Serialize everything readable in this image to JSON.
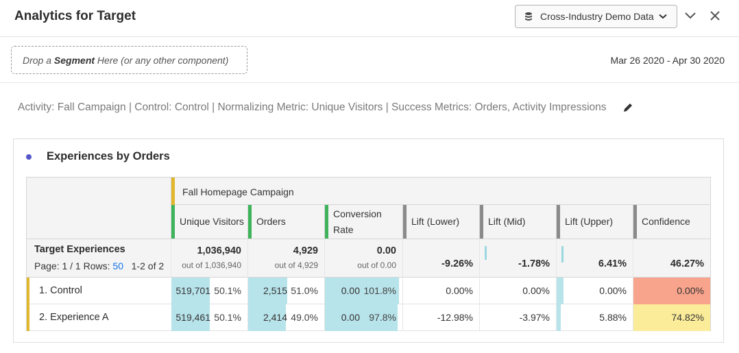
{
  "header": {
    "title": "Analytics for Target",
    "report_suite": "Cross-Industry Demo Data"
  },
  "segment_bar": {
    "drop_prefix": "Drop a ",
    "drop_bold": "Segment",
    "drop_suffix": " Here (or any other component)",
    "date_range": "Mar 26 2020 - Apr 30 2020"
  },
  "activity_line": "Activity: Fall Campaign | Control: Control | Normalizing Metric: Unique Visitors | Success Metrics: Orders, Activity Impressions",
  "panel": {
    "title": "Experiences by Orders",
    "dot_color": "#5557c9"
  },
  "table": {
    "group_header": "Fall Homepage Campaign",
    "columns": [
      {
        "label": "Unique Visitors",
        "bar_color": "#3fb35b"
      },
      {
        "label": "Orders",
        "bar_color": "#3fb35b"
      },
      {
        "label": "Conversion Rate",
        "bar_color": "#3fb35b"
      },
      {
        "label": "Lift (Lower)",
        "bar_color": "#8a8a8a"
      },
      {
        "label": "Lift (Mid)",
        "bar_color": "#8a8a8a"
      },
      {
        "label": "Lift (Upper)",
        "bar_color": "#8a8a8a"
      },
      {
        "label": "Confidence",
        "bar_color": "#8a8a8a"
      }
    ],
    "dimension": {
      "title": "Target Experiences",
      "page_text": "Page: 1 / 1 Rows: ",
      "rows_per_page": "50",
      "range_text": "1-2 of 2"
    },
    "summary": {
      "unique_visitors": {
        "value": "1,036,940",
        "sub": "out of 1,036,940"
      },
      "orders": {
        "value": "4,929",
        "sub": "out of 4,929"
      },
      "conversion_rate": {
        "value": "0.00",
        "sub": "out of 0.00"
      },
      "lift_lower": "-9.26%",
      "lift_mid": "-1.78%",
      "lift_upper": "6.41%",
      "confidence": "46.27%"
    },
    "rows": [
      {
        "label": "1. Control",
        "unique_visitors": "519,701",
        "uv_pct": "50.1%",
        "uv_share": 0.501,
        "orders": "2,515",
        "orders_pct": "51.0%",
        "orders_share": 0.51,
        "conversion": "0.00",
        "conv_pct": "101.8%",
        "conv_share": 1.0,
        "lift_lower": "0.00%",
        "lift_mid": "0.00%",
        "lift_upper": "0.00%",
        "confidence": "0.00%",
        "confidence_color": "#f8a38b"
      },
      {
        "label": "2. Experience A",
        "unique_visitors": "519,461",
        "uv_pct": "50.1%",
        "uv_share": 0.501,
        "orders": "2,414",
        "orders_pct": "49.0%",
        "orders_share": 0.49,
        "conversion": "0.00",
        "conv_pct": "97.8%",
        "conv_share": 0.978,
        "lift_lower": "-12.98%",
        "lift_mid": "-3.97%",
        "lift_upper": "5.88%",
        "confidence": "74.82%",
        "confidence_color": "#fbec9a"
      }
    ],
    "fill_color": "#b7e3ea",
    "accent_color": "#e2b72c"
  }
}
